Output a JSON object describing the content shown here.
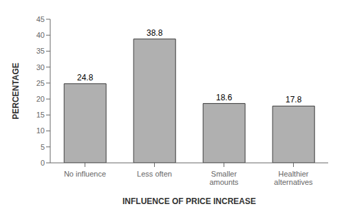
{
  "chart_data": {
    "type": "bar",
    "categories": [
      "No influence",
      "Less often",
      "Smaller\namounts",
      "Healthier\nalternatives"
    ],
    "values": [
      24.8,
      38.8,
      18.6,
      17.8
    ],
    "color": "#b0b0b0",
    "xlabel": "INFLUENCE OF PRICE INCREASE",
    "ylabel": "PERCENTAGE",
    "ylim": [
      0,
      45
    ],
    "yticks": [
      0,
      5,
      10,
      15,
      20,
      25,
      30,
      35,
      40,
      45
    ],
    "grid": false,
    "data_labels": true
  }
}
